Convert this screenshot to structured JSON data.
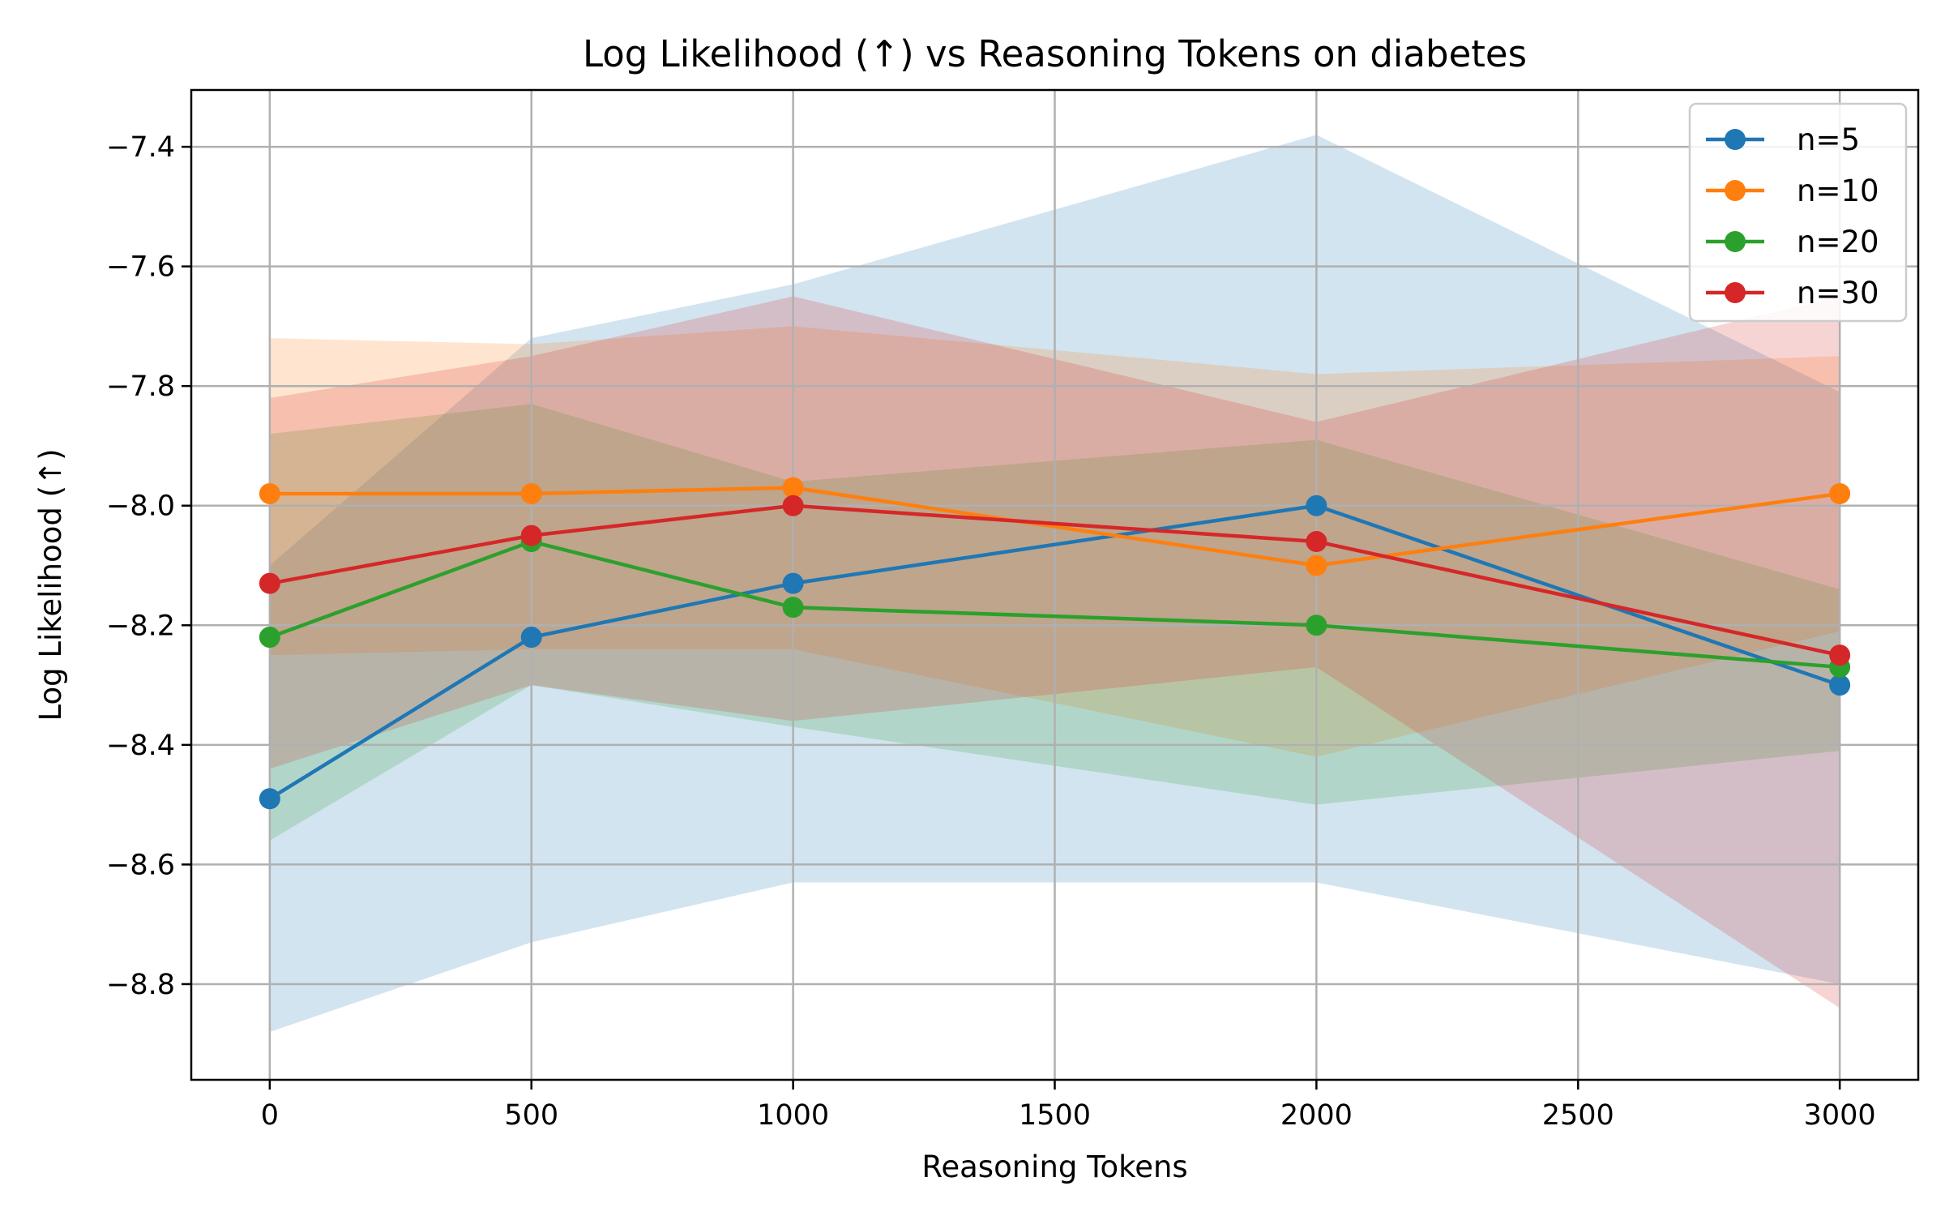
{
  "chart_data": {
    "type": "line",
    "title": "Log Likelihood (↑) vs Reasoning Tokens on diabetes",
    "xlabel": "Reasoning Tokens",
    "ylabel": "Log Likelihood (↑)",
    "x": [
      0,
      500,
      1000,
      2000,
      3000
    ],
    "xlim": [
      -150,
      3150
    ],
    "ylim": [
      -8.96,
      -7.305
    ],
    "xticks": [
      0,
      500,
      1000,
      1500,
      2000,
      2500,
      3000
    ],
    "yticks": [
      -8.8,
      -8.6,
      -8.4,
      -8.2,
      -8.0,
      -7.8,
      -7.6,
      -7.4
    ],
    "xtick_labels": [
      "0",
      "500",
      "1000",
      "1500",
      "2000",
      "2500",
      "3000"
    ],
    "ytick_labels": [
      "−8.8",
      "−8.6",
      "−8.4",
      "−8.2",
      "−8.0",
      "−7.8",
      "−7.6",
      "−7.4"
    ],
    "grid": true,
    "legend_position": "top-right",
    "series": [
      {
        "name": "n=5",
        "color": "#1f77b4",
        "values": [
          -8.49,
          -8.22,
          -8.13,
          -8.0,
          -8.3
        ],
        "lower": [
          -8.88,
          -8.73,
          -8.63,
          -8.63,
          -8.8
        ],
        "upper": [
          -8.1,
          -7.72,
          -7.63,
          -7.38,
          -7.81
        ]
      },
      {
        "name": "n=10",
        "color": "#ff7f0e",
        "values": [
          -7.98,
          -7.98,
          -7.97,
          -8.1,
          -7.98
        ],
        "lower": [
          -8.25,
          -8.24,
          -8.24,
          -8.42,
          -8.21
        ],
        "upper": [
          -7.72,
          -7.73,
          -7.7,
          -7.78,
          -7.75
        ]
      },
      {
        "name": "n=20",
        "color": "#2ca02c",
        "values": [
          -8.22,
          -8.06,
          -8.17,
          -8.2,
          -8.27
        ],
        "lower": [
          -8.56,
          -8.3,
          -8.37,
          -8.5,
          -8.41
        ],
        "upper": [
          -7.88,
          -7.83,
          -7.96,
          -7.89,
          -8.14
        ]
      },
      {
        "name": "n=30",
        "color": "#d62728",
        "values": [
          -8.13,
          -8.05,
          -8.0,
          -8.06,
          -8.25
        ],
        "lower": [
          -8.44,
          -8.3,
          -8.36,
          -8.27,
          -8.84
        ],
        "upper": [
          -7.82,
          -7.75,
          -7.65,
          -7.86,
          -7.65
        ]
      }
    ]
  }
}
